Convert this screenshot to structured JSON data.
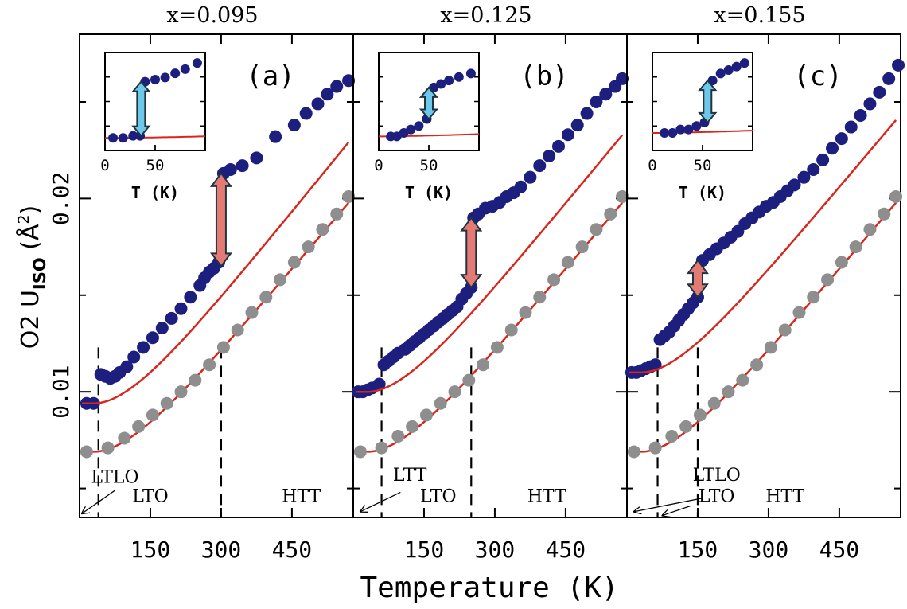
{
  "chart_data": {
    "type": "scatter",
    "xlabel": "Temperature (K)",
    "ylabel_main": "O2 U",
    "ylabel_sub": "ISO",
    "ylabel_unit_open": " (Å",
    "ylabel_unit_exp": "2",
    "ylabel_unit_close": ")",
    "xlim": [
      0,
      580
    ],
    "ylim": [
      0.0035,
      0.0285
    ],
    "x_ticks": [
      150,
      300,
      450
    ],
    "y_ticks": [
      0.01,
      0.02
    ],
    "y_tick_labels": [
      "0.01",
      "0.02"
    ],
    "inset": {
      "xlabel": "T (K)",
      "xlim": [
        0,
        100
      ],
      "x_ticks": [
        0,
        50
      ],
      "x_tick_labels": [
        "0",
        "50"
      ]
    },
    "colors": {
      "data": "#1c1f7e",
      "reference": "#8e8e8e",
      "fit": "#d9261c",
      "arrow_blue": "#6ec8ea",
      "arrow_red": "#e57a74",
      "arrow_outline": "#1f3340"
    },
    "panels": [
      {
        "label": "(a)",
        "title": "x=0.095",
        "transitions": [
          40,
          300
        ],
        "phases": [
          {
            "label": "LTLO",
            "x": 75,
            "y": 0.0053
          },
          {
            "label": "LTO",
            "x": 150,
            "y": 0.0043
          },
          {
            "label": "HTT",
            "x": 470,
            "y": 0.0043
          }
        ],
        "pointer": {
          "from": [
            75,
            0.0049
          ],
          "to": [
            5,
            0.0037
          ]
        },
        "blue_points": [
          [
            15,
            0.0094
          ],
          [
            30,
            0.0094
          ],
          [
            45,
            0.0109
          ],
          [
            55,
            0.0108
          ],
          [
            65,
            0.0107
          ],
          [
            75,
            0.0108
          ],
          [
            85,
            0.011
          ],
          [
            100,
            0.0113
          ],
          [
            115,
            0.0118
          ],
          [
            135,
            0.0123
          ],
          [
            155,
            0.0128
          ],
          [
            175,
            0.0133
          ],
          [
            195,
            0.0138
          ],
          [
            215,
            0.0143
          ],
          [
            235,
            0.0149
          ],
          [
            255,
            0.0155
          ],
          [
            265,
            0.0159
          ],
          [
            275,
            0.0162
          ],
          [
            285,
            0.0164
          ],
          [
            295,
            0.0167
          ],
          [
            305,
            0.0213
          ],
          [
            320,
            0.0215
          ],
          [
            345,
            0.0217
          ],
          [
            375,
            0.0221
          ],
          [
            415,
            0.0232
          ],
          [
            455,
            0.0238
          ],
          [
            480,
            0.0244
          ],
          [
            505,
            0.0249
          ],
          [
            525,
            0.0254
          ],
          [
            545,
            0.0258
          ],
          [
            570,
            0.0261
          ]
        ],
        "gray_points": [
          [
            15,
            0.0069
          ],
          [
            60,
            0.0071
          ],
          [
            95,
            0.0076
          ],
          [
            125,
            0.0082
          ],
          [
            155,
            0.0088
          ],
          [
            185,
            0.0094
          ],
          [
            215,
            0.01
          ],
          [
            245,
            0.0106
          ],
          [
            275,
            0.0114
          ],
          [
            305,
            0.0123
          ],
          [
            335,
            0.0132
          ],
          [
            365,
            0.0141
          ],
          [
            395,
            0.0149
          ],
          [
            425,
            0.0158
          ],
          [
            455,
            0.0167
          ],
          [
            485,
            0.0175
          ],
          [
            515,
            0.0184
          ],
          [
            545,
            0.0192
          ],
          [
            570,
            0.0201
          ]
        ],
        "fit_upper": {
          "y0": 0.0094,
          "x0": 30,
          "slope": 3e-05,
          "end": 570
        },
        "fit_lower": {
          "y0": 0.0069,
          "x0": 30,
          "slope": 2.86e-05,
          "end": 570
        },
        "arrow": {
          "x": 300,
          "y1": 0.0165,
          "y2": 0.0213,
          "color": "red"
        },
        "inset_blue": [
          [
            8,
            0.0094
          ],
          [
            18,
            0.0094
          ],
          [
            28,
            0.0095
          ],
          [
            35,
            0.0095
          ],
          [
            40,
            0.0121
          ],
          [
            50,
            0.0122
          ],
          [
            60,
            0.0123
          ],
          [
            70,
            0.0125
          ],
          [
            80,
            0.0127
          ],
          [
            92,
            0.013
          ]
        ],
        "inset_fit": {
          "y0": 0.0094,
          "x0": 10,
          "k": 3.5e-09,
          "end": 100
        },
        "inset_arrow": {
          "x": 36,
          "y1": 0.0095,
          "y2": 0.0121
        },
        "inset_ylim": [
          0.0088,
          0.0135
        ]
      },
      {
        "label": "(b)",
        "title": "x=0.125",
        "transitions": [
          60,
          250
        ],
        "phases": [
          {
            "label": "LTT",
            "x": 120,
            "y": 0.0054
          },
          {
            "label": "LTO",
            "x": 180,
            "y": 0.0043
          },
          {
            "label": "HTT",
            "x": 410,
            "y": 0.0043
          }
        ],
        "pointer": {
          "from": [
            100,
            0.0048
          ],
          "to": [
            15,
            0.0038
          ]
        },
        "blue_points": [
          [
            10,
            0.01
          ],
          [
            20,
            0.01
          ],
          [
            30,
            0.0101
          ],
          [
            40,
            0.0102
          ],
          [
            55,
            0.0104
          ],
          [
            65,
            0.0114
          ],
          [
            75,
            0.0116
          ],
          [
            85,
            0.0118
          ],
          [
            95,
            0.012
          ],
          [
            110,
            0.0122
          ],
          [
            120,
            0.0124
          ],
          [
            130,
            0.0126
          ],
          [
            140,
            0.0128
          ],
          [
            150,
            0.013
          ],
          [
            160,
            0.0132
          ],
          [
            170,
            0.0134
          ],
          [
            180,
            0.0136
          ],
          [
            190,
            0.0138
          ],
          [
            200,
            0.014
          ],
          [
            210,
            0.0142
          ],
          [
            220,
            0.0144
          ],
          [
            230,
            0.0148
          ],
          [
            240,
            0.0151
          ],
          [
            250,
            0.0154
          ],
          [
            255,
            0.019
          ],
          [
            265,
            0.0192
          ],
          [
            280,
            0.0195
          ],
          [
            295,
            0.0196
          ],
          [
            310,
            0.0198
          ],
          [
            325,
            0.0201
          ],
          [
            340,
            0.0203
          ],
          [
            355,
            0.0206
          ],
          [
            375,
            0.0211
          ],
          [
            395,
            0.0217
          ],
          [
            415,
            0.0222
          ],
          [
            435,
            0.0227
          ],
          [
            455,
            0.0233
          ],
          [
            475,
            0.0238
          ],
          [
            495,
            0.0244
          ],
          [
            515,
            0.025
          ],
          [
            535,
            0.0254
          ],
          [
            555,
            0.0258
          ],
          [
            570,
            0.0262
          ]
        ],
        "gray_points": [
          [
            15,
            0.0069
          ],
          [
            60,
            0.0071
          ],
          [
            95,
            0.0077
          ],
          [
            125,
            0.0082
          ],
          [
            155,
            0.0088
          ],
          [
            185,
            0.0094
          ],
          [
            215,
            0.01
          ],
          [
            245,
            0.0106
          ],
          [
            275,
            0.0114
          ],
          [
            305,
            0.0123
          ],
          [
            335,
            0.0132
          ],
          [
            365,
            0.0141
          ],
          [
            395,
            0.0149
          ],
          [
            425,
            0.0158
          ],
          [
            455,
            0.0167
          ],
          [
            485,
            0.0175
          ],
          [
            515,
            0.0184
          ],
          [
            545,
            0.0192
          ],
          [
            570,
            0.0201
          ]
        ],
        "fit_upper": {
          "y0": 0.01,
          "x0": 30,
          "slope": 2.95e-05,
          "end": 570
        },
        "fit_lower": {
          "y0": 0.0069,
          "x0": 30,
          "slope": 2.86e-05,
          "end": 570
        },
        "arrow": {
          "x": 250,
          "y1": 0.0154,
          "y2": 0.019,
          "color": "red"
        },
        "inset_blue": [
          [
            12,
            0.0101
          ],
          [
            18,
            0.0101
          ],
          [
            25,
            0.0102
          ],
          [
            32,
            0.0103
          ],
          [
            40,
            0.0104
          ],
          [
            48,
            0.0106
          ],
          [
            55,
            0.0115
          ],
          [
            62,
            0.0116
          ],
          [
            70,
            0.0117
          ],
          [
            80,
            0.0118
          ],
          [
            92,
            0.0119
          ]
        ],
        "inset_fit": {
          "y0": 0.0101,
          "x0": 10,
          "k": 2e-09,
          "end": 100
        },
        "inset_arrow": {
          "x": 50,
          "y1": 0.0106,
          "y2": 0.0115
        },
        "inset_ylim": [
          0.0097,
          0.0125
        ]
      },
      {
        "label": "(c)",
        "title": "x=0.155",
        "transitions": [
          65,
          150
        ],
        "phases": [
          {
            "label": "LTLO",
            "x": 190,
            "y": 0.0054
          },
          {
            "label": "LTO",
            "x": 190,
            "y": 0.0043
          },
          {
            "label": "HTT",
            "x": 335,
            "y": 0.0043
          }
        ],
        "pointer": {
          "from": [
            160,
            0.0045
          ],
          "to": [
            15,
            0.0038
          ]
        },
        "pointer2": {
          "from": [
            135,
            0.0041
          ],
          "to": [
            75,
            0.0036
          ]
        },
        "blue_points": [
          [
            10,
            0.011
          ],
          [
            20,
            0.011
          ],
          [
            30,
            0.0111
          ],
          [
            40,
            0.0112
          ],
          [
            50,
            0.0113
          ],
          [
            60,
            0.0114
          ],
          [
            70,
            0.0127
          ],
          [
            80,
            0.0129
          ],
          [
            90,
            0.0131
          ],
          [
            100,
            0.0134
          ],
          [
            110,
            0.0137
          ],
          [
            120,
            0.014
          ],
          [
            130,
            0.0143
          ],
          [
            140,
            0.0146
          ],
          [
            150,
            0.0149
          ],
          [
            160,
            0.0168
          ],
          [
            175,
            0.0171
          ],
          [
            190,
            0.0174
          ],
          [
            205,
            0.0177
          ],
          [
            220,
            0.018
          ],
          [
            235,
            0.0183
          ],
          [
            250,
            0.0187
          ],
          [
            265,
            0.019
          ],
          [
            280,
            0.0193
          ],
          [
            295,
            0.0196
          ],
          [
            310,
            0.0198
          ],
          [
            325,
            0.0201
          ],
          [
            340,
            0.0204
          ],
          [
            355,
            0.0207
          ],
          [
            375,
            0.0211
          ],
          [
            395,
            0.0215
          ],
          [
            415,
            0.022
          ],
          [
            435,
            0.0226
          ],
          [
            455,
            0.0231
          ],
          [
            475,
            0.0237
          ],
          [
            495,
            0.0243
          ],
          [
            515,
            0.0249
          ],
          [
            535,
            0.0255
          ],
          [
            555,
            0.0262
          ],
          [
            575,
            0.0269
          ]
        ],
        "gray_points": [
          [
            15,
            0.0069
          ],
          [
            60,
            0.0071
          ],
          [
            95,
            0.0077
          ],
          [
            125,
            0.0082
          ],
          [
            155,
            0.0088
          ],
          [
            185,
            0.0094
          ],
          [
            215,
            0.01
          ],
          [
            245,
            0.0106
          ],
          [
            275,
            0.0114
          ],
          [
            305,
            0.0123
          ],
          [
            335,
            0.0132
          ],
          [
            365,
            0.0141
          ],
          [
            395,
            0.0149
          ],
          [
            425,
            0.0158
          ],
          [
            455,
            0.0167
          ],
          [
            485,
            0.0175
          ],
          [
            515,
            0.0184
          ],
          [
            545,
            0.0192
          ],
          [
            570,
            0.0201
          ]
        ],
        "fit_upper": {
          "y0": 0.011,
          "x0": 30,
          "slope": 2.9e-05,
          "end": 570
        },
        "fit_lower": {
          "y0": 0.0069,
          "x0": 30,
          "slope": 2.86e-05,
          "end": 570
        },
        "arrow": {
          "x": 150,
          "y1": 0.0149,
          "y2": 0.0168,
          "color": "red"
        },
        "inset_blue": [
          [
            12,
            0.0111
          ],
          [
            20,
            0.0111
          ],
          [
            28,
            0.0112
          ],
          [
            36,
            0.0112
          ],
          [
            44,
            0.0113
          ],
          [
            52,
            0.0114
          ],
          [
            60,
            0.0126
          ],
          [
            68,
            0.0128
          ],
          [
            76,
            0.0129
          ],
          [
            84,
            0.013
          ],
          [
            92,
            0.0131
          ]
        ],
        "inset_fit": {
          "y0": 0.0111,
          "x0": 10,
          "k": 2.2e-09,
          "end": 100
        },
        "inset_arrow": {
          "x": 55,
          "y1": 0.0114,
          "y2": 0.0126
        },
        "inset_ylim": [
          0.0106,
          0.0134
        ]
      }
    ]
  }
}
